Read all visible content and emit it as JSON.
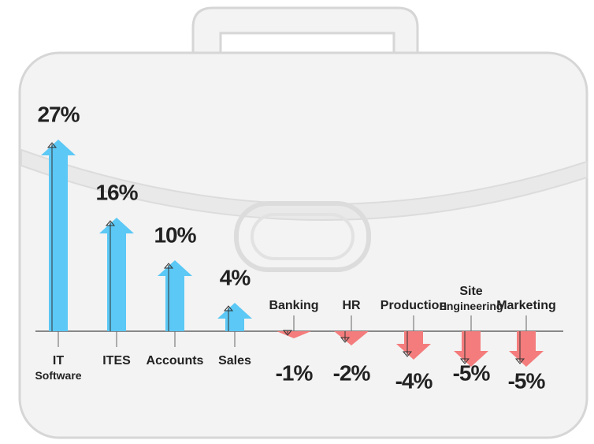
{
  "chart_data": {
    "type": "bar",
    "categories": [
      "IT Software",
      "ITES",
      "Accounts",
      "Sales",
      "Banking",
      "HR",
      "Production",
      "Site Engineering",
      "Marketing"
    ],
    "values": [
      27,
      16,
      10,
      4,
      -1,
      -2,
      -4,
      -5,
      -5
    ],
    "value_labels": [
      "27%",
      "16%",
      "10%",
      "4%",
      "-1%",
      "-2%",
      "-4%",
      "-5%",
      "-5%"
    ],
    "colors": {
      "positive": "#5bc8f5",
      "negative": "#f47c7c"
    }
  }
}
